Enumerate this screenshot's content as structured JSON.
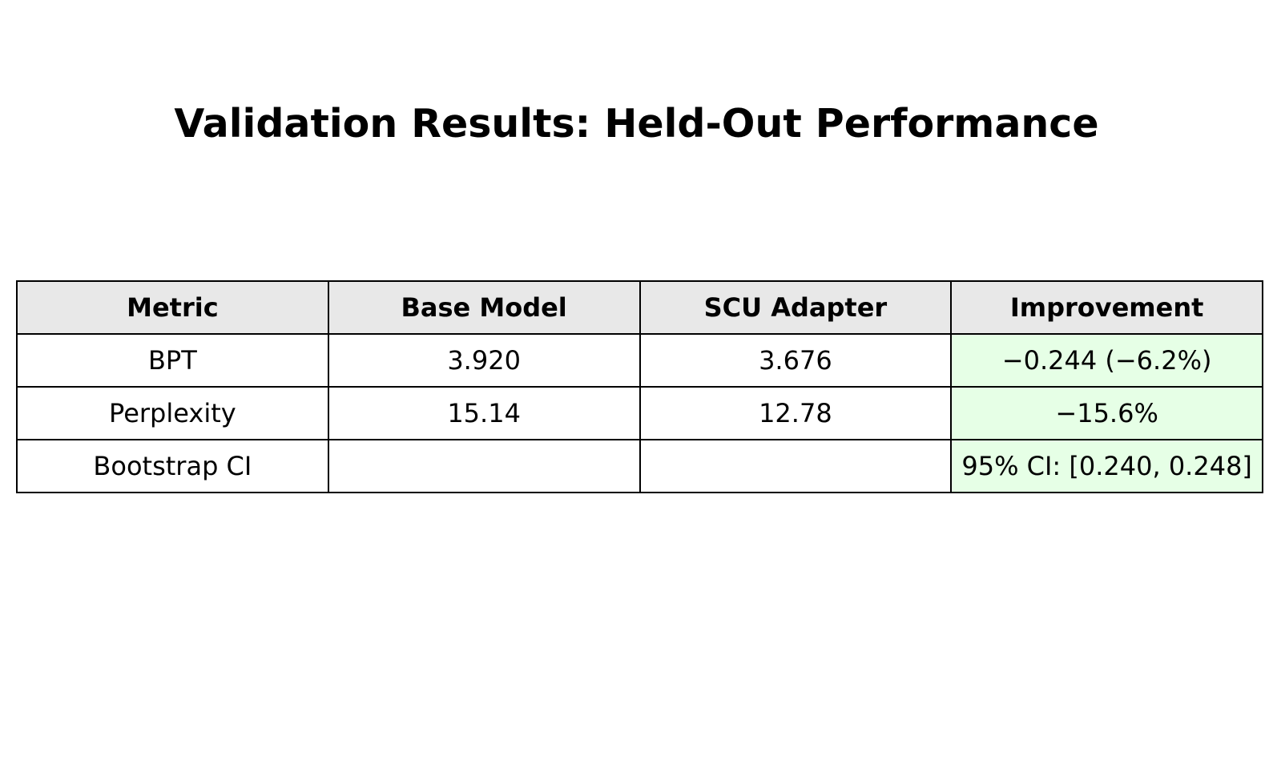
{
  "chart_data": {
    "type": "table",
    "title": "Validation Results: Held-Out Performance",
    "columns": [
      "Metric",
      "Base Model",
      "SCU Adapter",
      "Improvement"
    ],
    "rows": [
      [
        "BPT",
        "3.920",
        "3.676",
        "−0.244 (−6.2%)"
      ],
      [
        "Perplexity",
        "15.14",
        "12.78",
        "−15.6%"
      ],
      [
        "Bootstrap CI",
        "",
        "",
        "95% CI: [0.240, 0.248]"
      ]
    ],
    "colors": {
      "header_bg": "#e8e8e8",
      "improvement_bg": "#e6ffe6",
      "border": "#000000"
    }
  }
}
